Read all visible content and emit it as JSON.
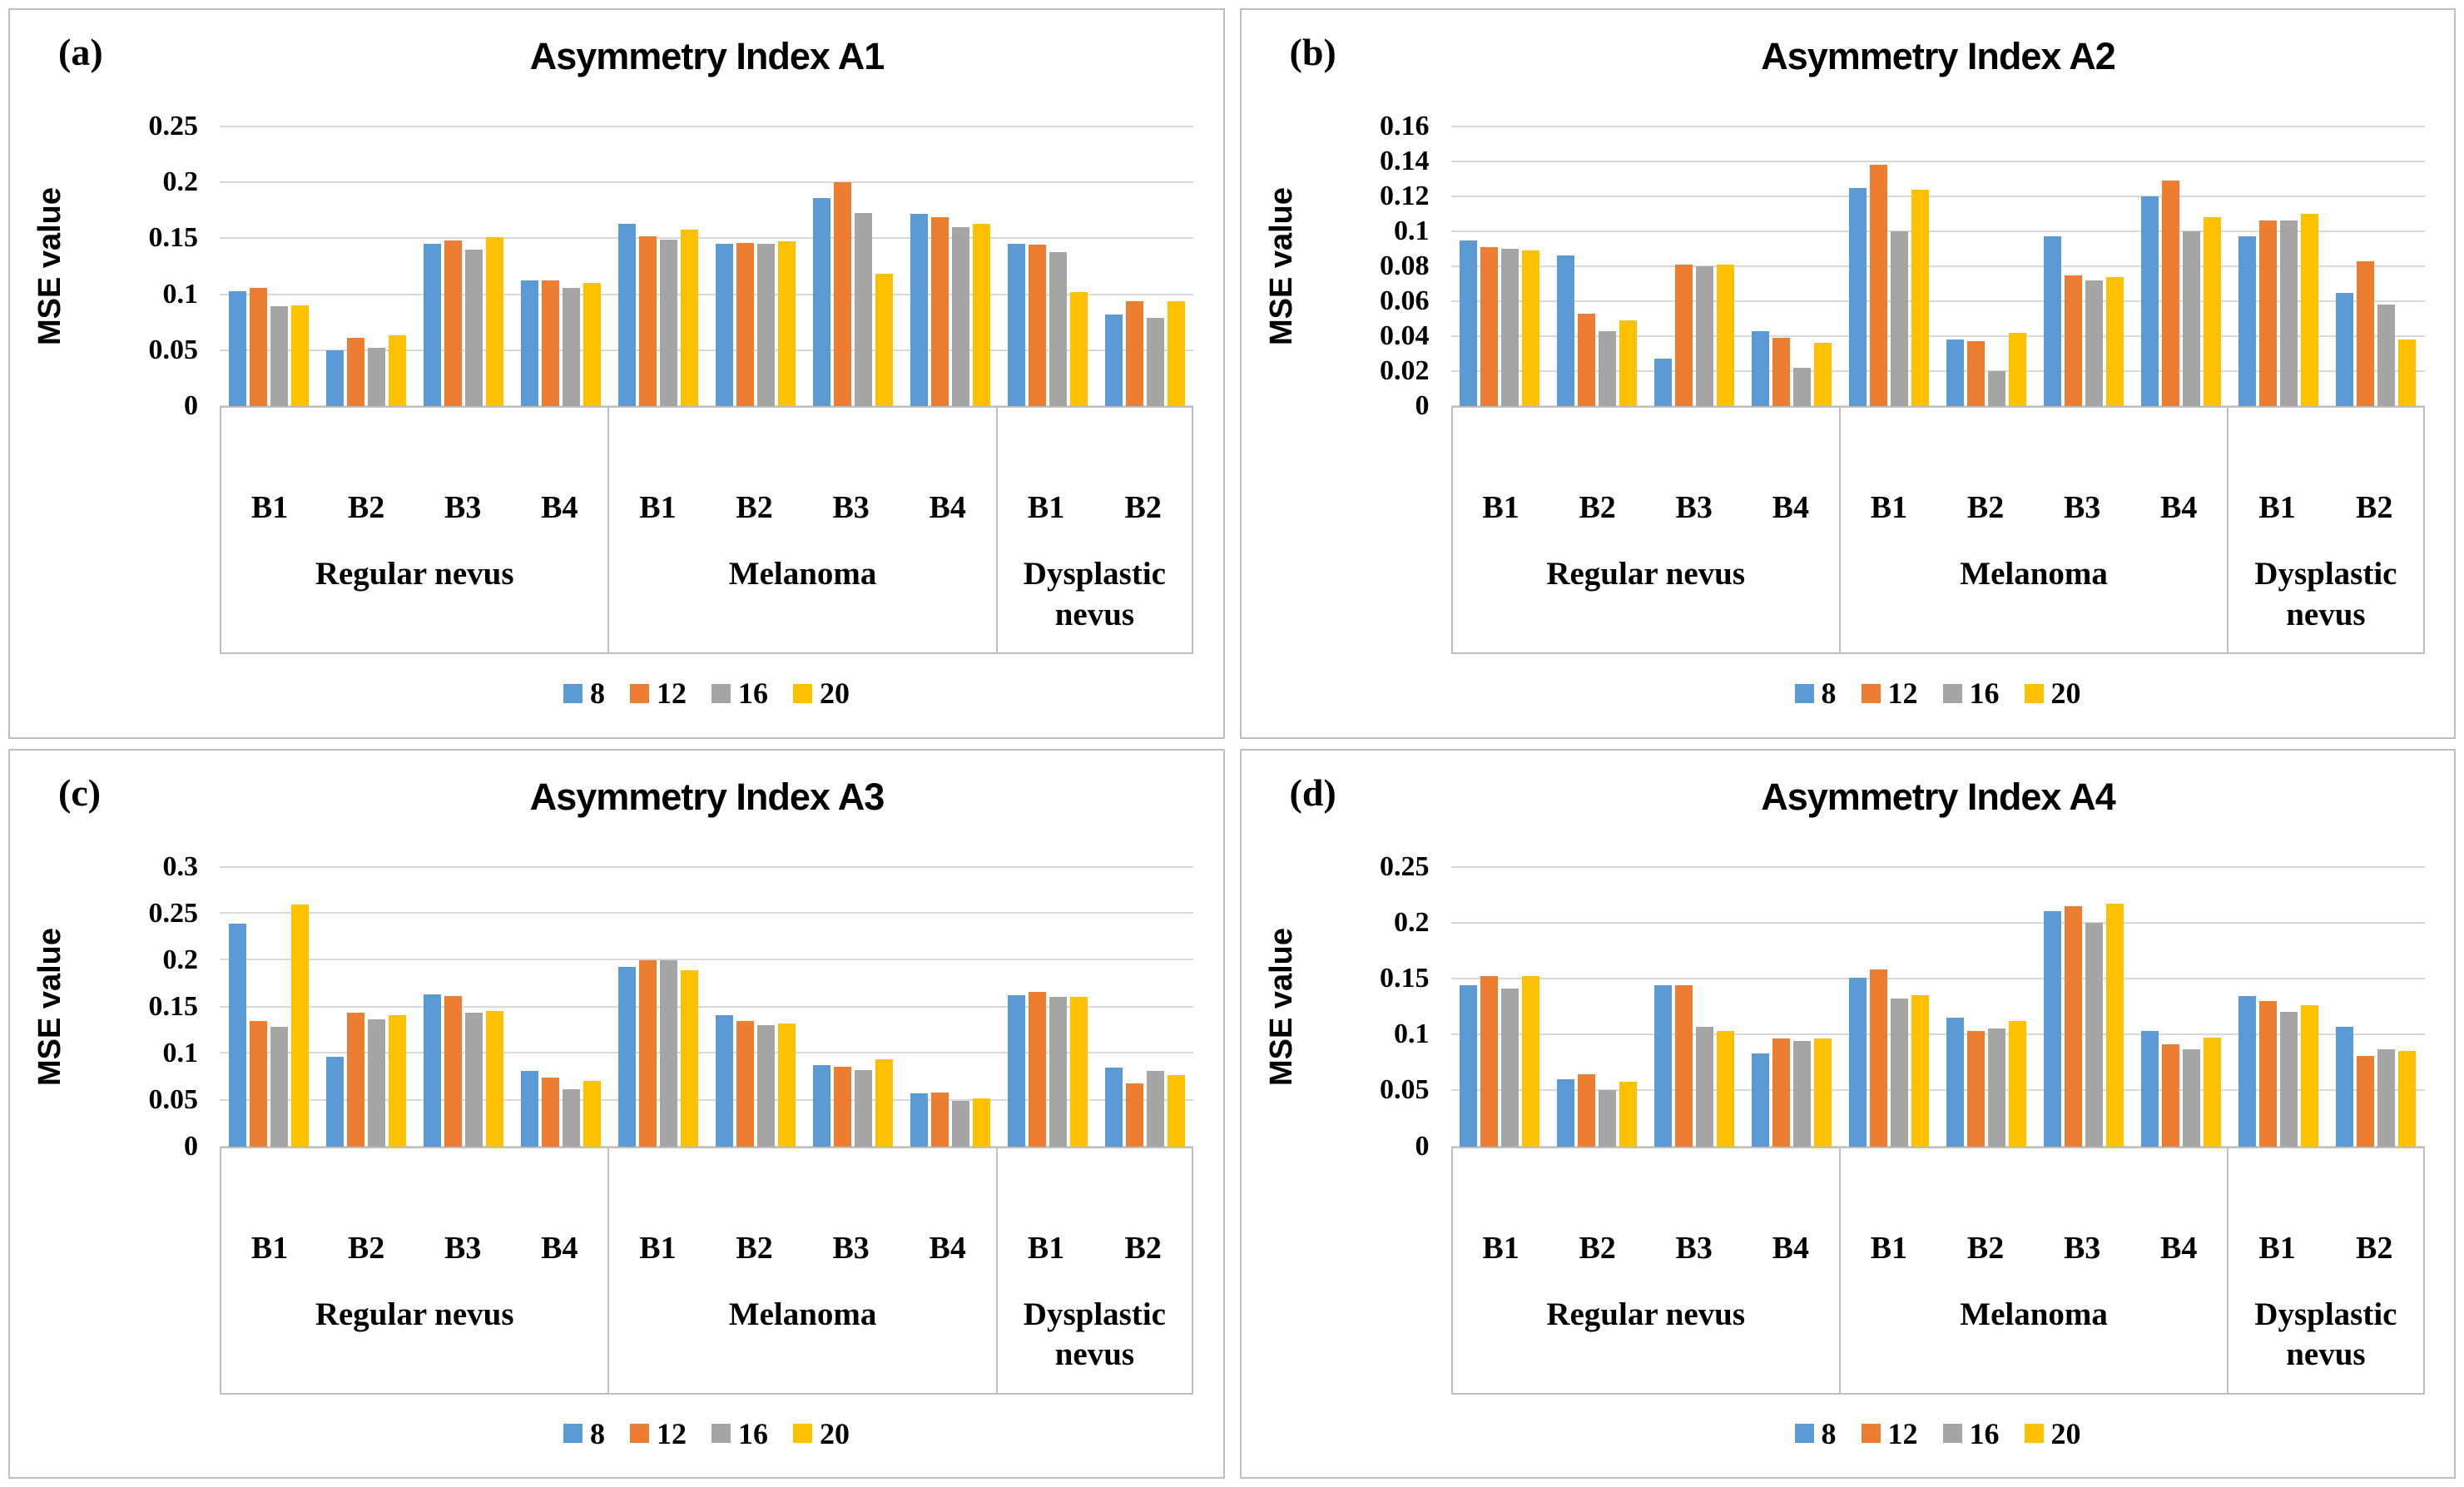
{
  "page": {
    "background": "#ffffff",
    "panel_border": "#bfbfbf",
    "gridline_color": "#d9d9d9"
  },
  "series_colors": {
    "blue": "#5B9BD5",
    "orange": "#ED7D31",
    "gray": "#A5A5A5",
    "yellow": "#FFC000"
  },
  "legend": {
    "items": [
      {
        "label": "8",
        "color": "#5B9BD5"
      },
      {
        "label": "12",
        "color": "#ED7D31"
      },
      {
        "label": "16",
        "color": "#A5A5A5"
      },
      {
        "label": "20",
        "color": "#FFC000"
      }
    ]
  },
  "chart_data": [
    {
      "type": "bar",
      "panel_letter": "(a)",
      "title": "Asymmetry Index A1",
      "ylabel": "MSE value",
      "ylim": [
        0,
        0.25
      ],
      "yticks": [
        "0.25",
        "0.2",
        "0.15",
        "0.1",
        "0.05",
        "0"
      ],
      "grid": true,
      "legend_position": "bottom",
      "groups": [
        {
          "name": "Regular nevus",
          "categories": [
            "B1",
            "B2",
            "B3",
            "B4"
          ]
        },
        {
          "name": "Melanoma",
          "categories": [
            "B1",
            "B2",
            "B3",
            "B4"
          ]
        },
        {
          "name": "Dysplastic nevus",
          "categories": [
            "B1",
            "B2"
          ]
        }
      ],
      "series": [
        {
          "name": "8",
          "color": "#5B9BD5",
          "values": [
            0.103,
            0.05,
            0.145,
            0.112,
            0.163,
            0.145,
            0.186,
            0.172,
            0.145,
            0.082
          ]
        },
        {
          "name": "12",
          "color": "#ED7D31",
          "values": [
            0.106,
            0.061,
            0.148,
            0.112,
            0.152,
            0.146,
            0.2,
            0.169,
            0.144,
            0.094
          ]
        },
        {
          "name": "16",
          "color": "#A5A5A5",
          "values": [
            0.089,
            0.052,
            0.14,
            0.106,
            0.149,
            0.145,
            0.173,
            0.16,
            0.138,
            0.079
          ]
        },
        {
          "name": "20",
          "color": "#FFC000",
          "values": [
            0.09,
            0.063,
            0.151,
            0.11,
            0.158,
            0.147,
            0.118,
            0.163,
            0.102,
            0.094
          ]
        }
      ]
    },
    {
      "type": "bar",
      "panel_letter": "(b)",
      "title": "Asymmetry Index A2",
      "ylabel": "MSE value",
      "ylim": [
        0,
        0.16
      ],
      "yticks": [
        "0.16",
        "0.14",
        "0.12",
        "0.1",
        "0.08",
        "0.06",
        "0.04",
        "0.02",
        "0"
      ],
      "grid": true,
      "legend_position": "bottom",
      "groups": [
        {
          "name": "Regular nevus",
          "categories": [
            "B1",
            "B2",
            "B3",
            "B4"
          ]
        },
        {
          "name": "Melanoma",
          "categories": [
            "B1",
            "B2",
            "B3",
            "B4"
          ]
        },
        {
          "name": "Dysplastic nevus",
          "categories": [
            "B1",
            "B2"
          ]
        }
      ],
      "series": [
        {
          "name": "8",
          "color": "#5B9BD5",
          "values": [
            0.095,
            0.086,
            0.027,
            0.043,
            0.125,
            0.038,
            0.097,
            0.12,
            0.097,
            0.065
          ]
        },
        {
          "name": "12",
          "color": "#ED7D31",
          "values": [
            0.091,
            0.053,
            0.081,
            0.039,
            0.138,
            0.037,
            0.075,
            0.129,
            0.106,
            0.083
          ]
        },
        {
          "name": "16",
          "color": "#A5A5A5",
          "values": [
            0.09,
            0.043,
            0.08,
            0.022,
            0.1,
            0.02,
            0.072,
            0.1,
            0.106,
            0.058
          ]
        },
        {
          "name": "20",
          "color": "#FFC000",
          "values": [
            0.089,
            0.049,
            0.081,
            0.036,
            0.124,
            0.042,
            0.074,
            0.108,
            0.11,
            0.038
          ]
        }
      ]
    },
    {
      "type": "bar",
      "panel_letter": "(c)",
      "title": "Asymmetry Index A3",
      "ylabel": "MSE value",
      "ylim": [
        0,
        0.3
      ],
      "yticks": [
        "0.3",
        "0.25",
        "0.2",
        "0.15",
        "0.1",
        "0.05",
        "0"
      ],
      "grid": true,
      "legend_position": "bottom",
      "groups": [
        {
          "name": "Regular nevus",
          "categories": [
            "B1",
            "B2",
            "B3",
            "B4"
          ]
        },
        {
          "name": "Melanoma",
          "categories": [
            "B1",
            "B2",
            "B3",
            "B4"
          ]
        },
        {
          "name": "Dysplastic nevus",
          "categories": [
            "B1",
            "B2"
          ]
        }
      ],
      "series": [
        {
          "name": "8",
          "color": "#5B9BD5",
          "values": [
            0.239,
            0.096,
            0.163,
            0.081,
            0.192,
            0.141,
            0.087,
            0.057,
            0.162,
            0.084
          ]
        },
        {
          "name": "12",
          "color": "#ED7D31",
          "values": [
            0.134,
            0.143,
            0.161,
            0.074,
            0.2,
            0.134,
            0.085,
            0.058,
            0.166,
            0.067
          ]
        },
        {
          "name": "16",
          "color": "#A5A5A5",
          "values": [
            0.128,
            0.136,
            0.143,
            0.061,
            0.2,
            0.13,
            0.082,
            0.049,
            0.16,
            0.081
          ]
        },
        {
          "name": "20",
          "color": "#FFC000",
          "values": [
            0.259,
            0.141,
            0.145,
            0.07,
            0.189,
            0.132,
            0.093,
            0.051,
            0.16,
            0.076
          ]
        }
      ]
    },
    {
      "type": "bar",
      "panel_letter": "(d)",
      "title": "Asymmetry Index A4",
      "ylabel": "MSE value",
      "ylim": [
        0,
        0.25
      ],
      "yticks": [
        "0.25",
        "0.2",
        "0.15",
        "0.1",
        "0.05",
        "0"
      ],
      "grid": true,
      "legend_position": "bottom",
      "groups": [
        {
          "name": "Regular nevus",
          "categories": [
            "B1",
            "B2",
            "B3",
            "B4"
          ]
        },
        {
          "name": "Melanoma",
          "categories": [
            "B1",
            "B2",
            "B3",
            "B4"
          ]
        },
        {
          "name": "Dysplastic nevus",
          "categories": [
            "B1",
            "B2"
          ]
        }
      ],
      "series": [
        {
          "name": "8",
          "color": "#5B9BD5",
          "values": [
            0.144,
            0.06,
            0.144,
            0.083,
            0.151,
            0.115,
            0.21,
            0.103,
            0.134,
            0.107
          ]
        },
        {
          "name": "12",
          "color": "#ED7D31",
          "values": [
            0.152,
            0.064,
            0.144,
            0.096,
            0.158,
            0.103,
            0.215,
            0.091,
            0.13,
            0.081
          ]
        },
        {
          "name": "16",
          "color": "#A5A5A5",
          "values": [
            0.141,
            0.05,
            0.107,
            0.094,
            0.132,
            0.105,
            0.2,
            0.087,
            0.12,
            0.087
          ]
        },
        {
          "name": "20",
          "color": "#FFC000",
          "values": [
            0.152,
            0.058,
            0.103,
            0.096,
            0.135,
            0.112,
            0.217,
            0.097,
            0.126,
            0.085
          ]
        }
      ]
    }
  ]
}
